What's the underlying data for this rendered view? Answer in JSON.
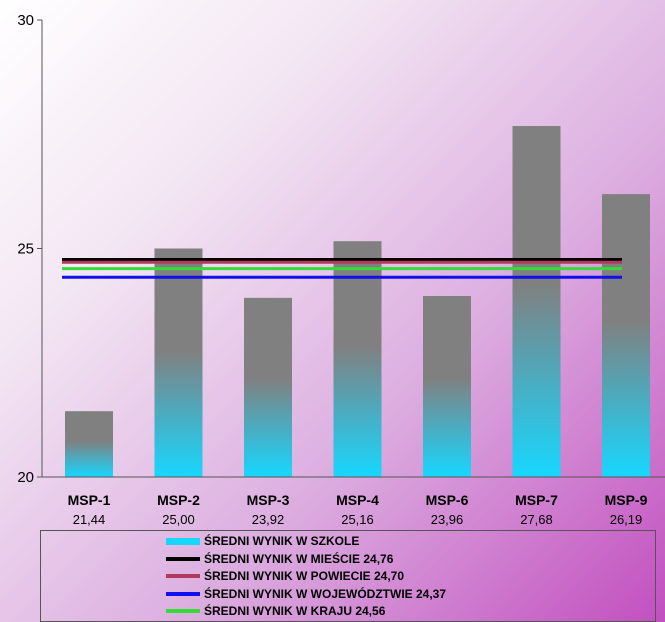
{
  "chart_data": {
    "type": "bar",
    "categories": [
      "MSP-1",
      "MSP-2",
      "MSP-3",
      "MSP-4",
      "MSP-6",
      "MSP-7",
      "MSP-9"
    ],
    "category_values_text": [
      "21,44",
      "25,00",
      "23,92",
      "25,16",
      "23,96",
      "27,68",
      "26,19"
    ],
    "values": [
      21.44,
      25.0,
      23.92,
      25.16,
      23.96,
      27.68,
      26.19
    ],
    "ylim": [
      20,
      30
    ],
    "yticks": [
      "20",
      "25",
      "30"
    ],
    "bar_series": {
      "name": "ŚREDNI WYNIK W SZKOLE",
      "color_top": "#808080",
      "color_bottom": "#17d7ff"
    },
    "reference_lines": [
      {
        "name": "ŚREDNI WYNIK W MIEŚCIE 24,76",
        "value": 24.76,
        "color": "#000000"
      },
      {
        "name": "ŚREDNI WYNIK W POWIECIE 24,70",
        "value": 24.7,
        "color": "#b03a5b"
      },
      {
        "name": "ŚREDNI WYNIK W WOJEWÓDZTWIE 24,37",
        "value": 24.37,
        "color": "#1010ee"
      },
      {
        "name": "ŚREDNI WYNIK W KRAJU 24,56",
        "value": 24.56,
        "color": "#33dd33"
      }
    ],
    "legend_position": "bottom",
    "grid": false
  }
}
